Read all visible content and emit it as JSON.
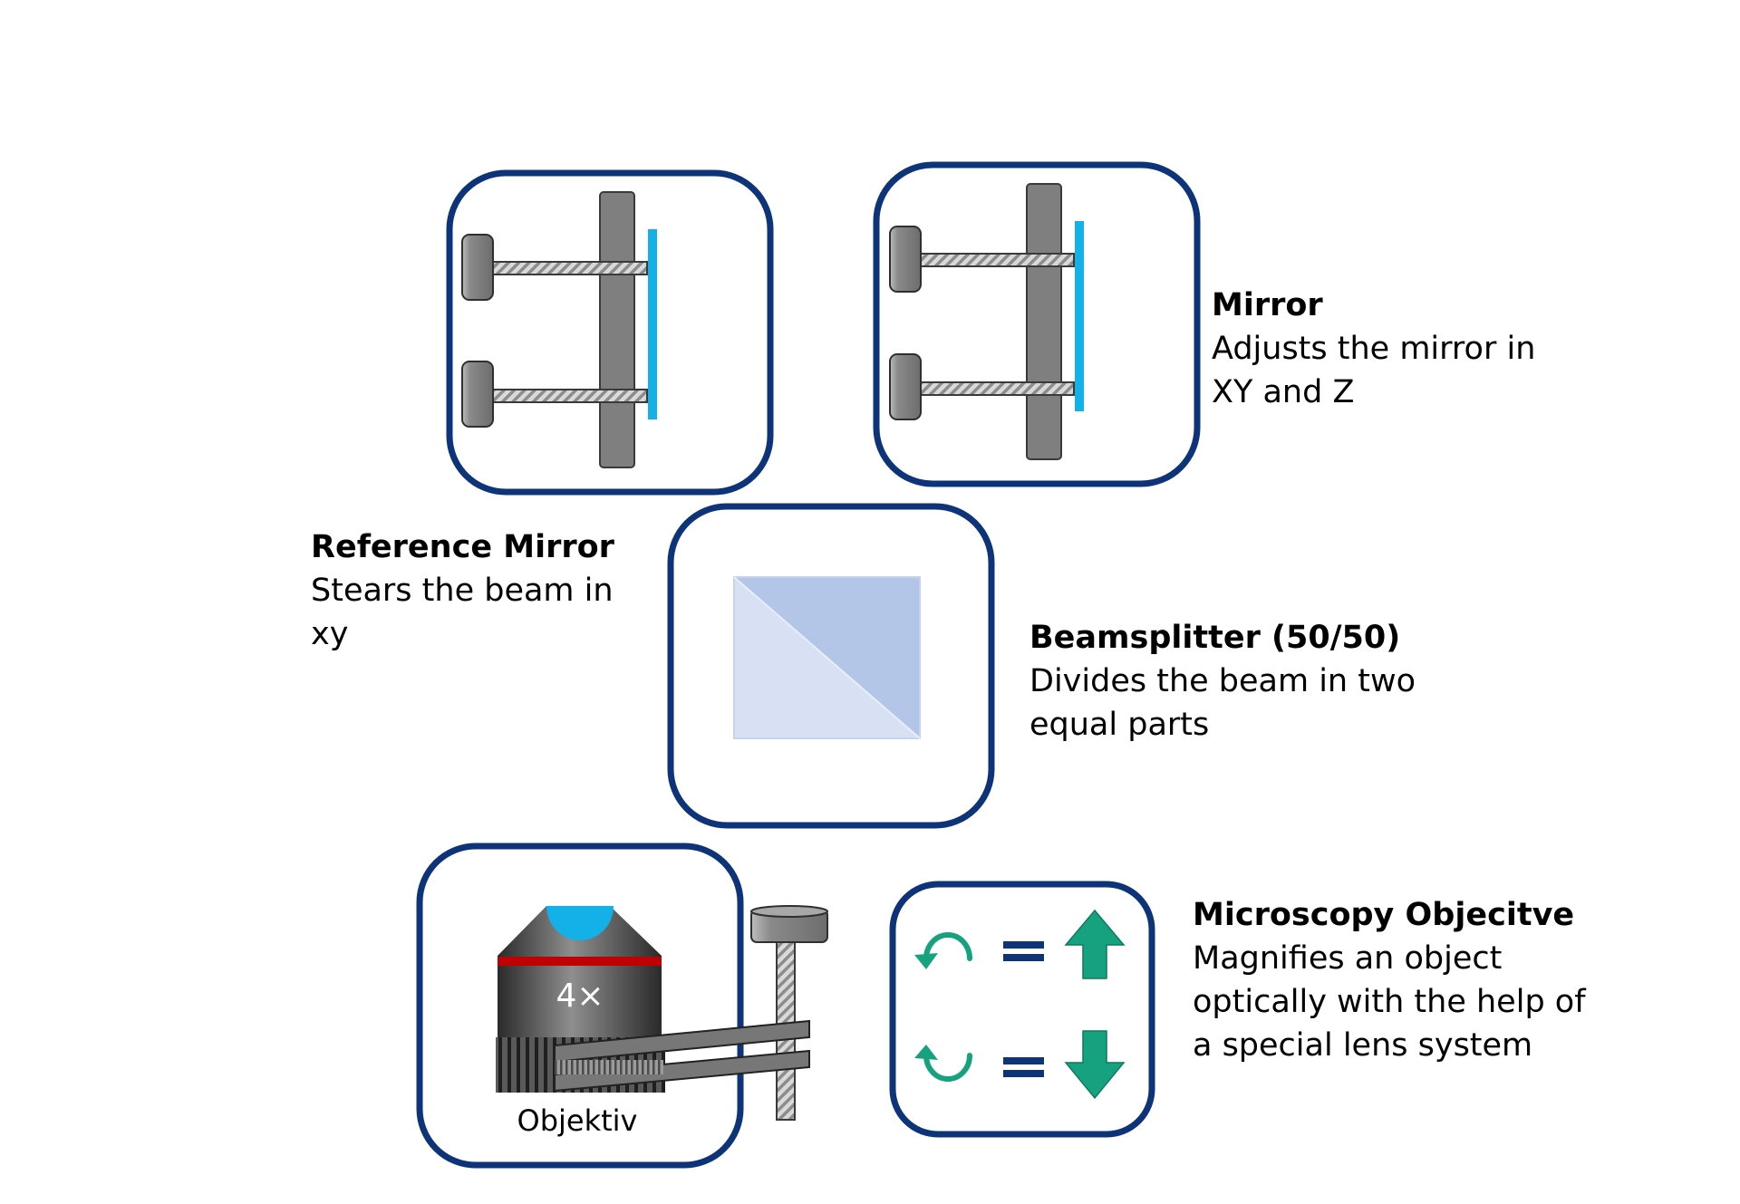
{
  "captions": {
    "mirror": {
      "title": "Mirror",
      "desc": "Adjusts the mirror in\nXY and Z"
    },
    "reference_mirror": {
      "title": "Reference Mirror",
      "desc": "Stears the beam in\nxy"
    },
    "beamsplitter": {
      "title": "Beamsplitter (50/50)",
      "desc": "Divides the beam in two\nequal parts"
    },
    "objective": {
      "title": "Microscopy Objecitve",
      "desc": "Magnifies an object\noptically with the help of\na special lens system"
    }
  },
  "objective_labels": {
    "magnification": "4×",
    "name": "Objektiv"
  },
  "colors": {
    "frame": "#0d3478",
    "mount": "#7f7f7f",
    "mirror_glass": "#13b1e8",
    "splitter_light": "#d7e1f3",
    "splitter_dark": "#b3c6e8",
    "objective_band": "#c00000",
    "arrow_green": "#17a27f"
  },
  "icons": {
    "rotate_ccw": "counter-clockwise-arrow-icon",
    "rotate_cw": "clockwise-arrow-icon",
    "arrow_up": "arrow-up-icon",
    "arrow_down": "arrow-down-icon",
    "equals": "equals-icon"
  }
}
